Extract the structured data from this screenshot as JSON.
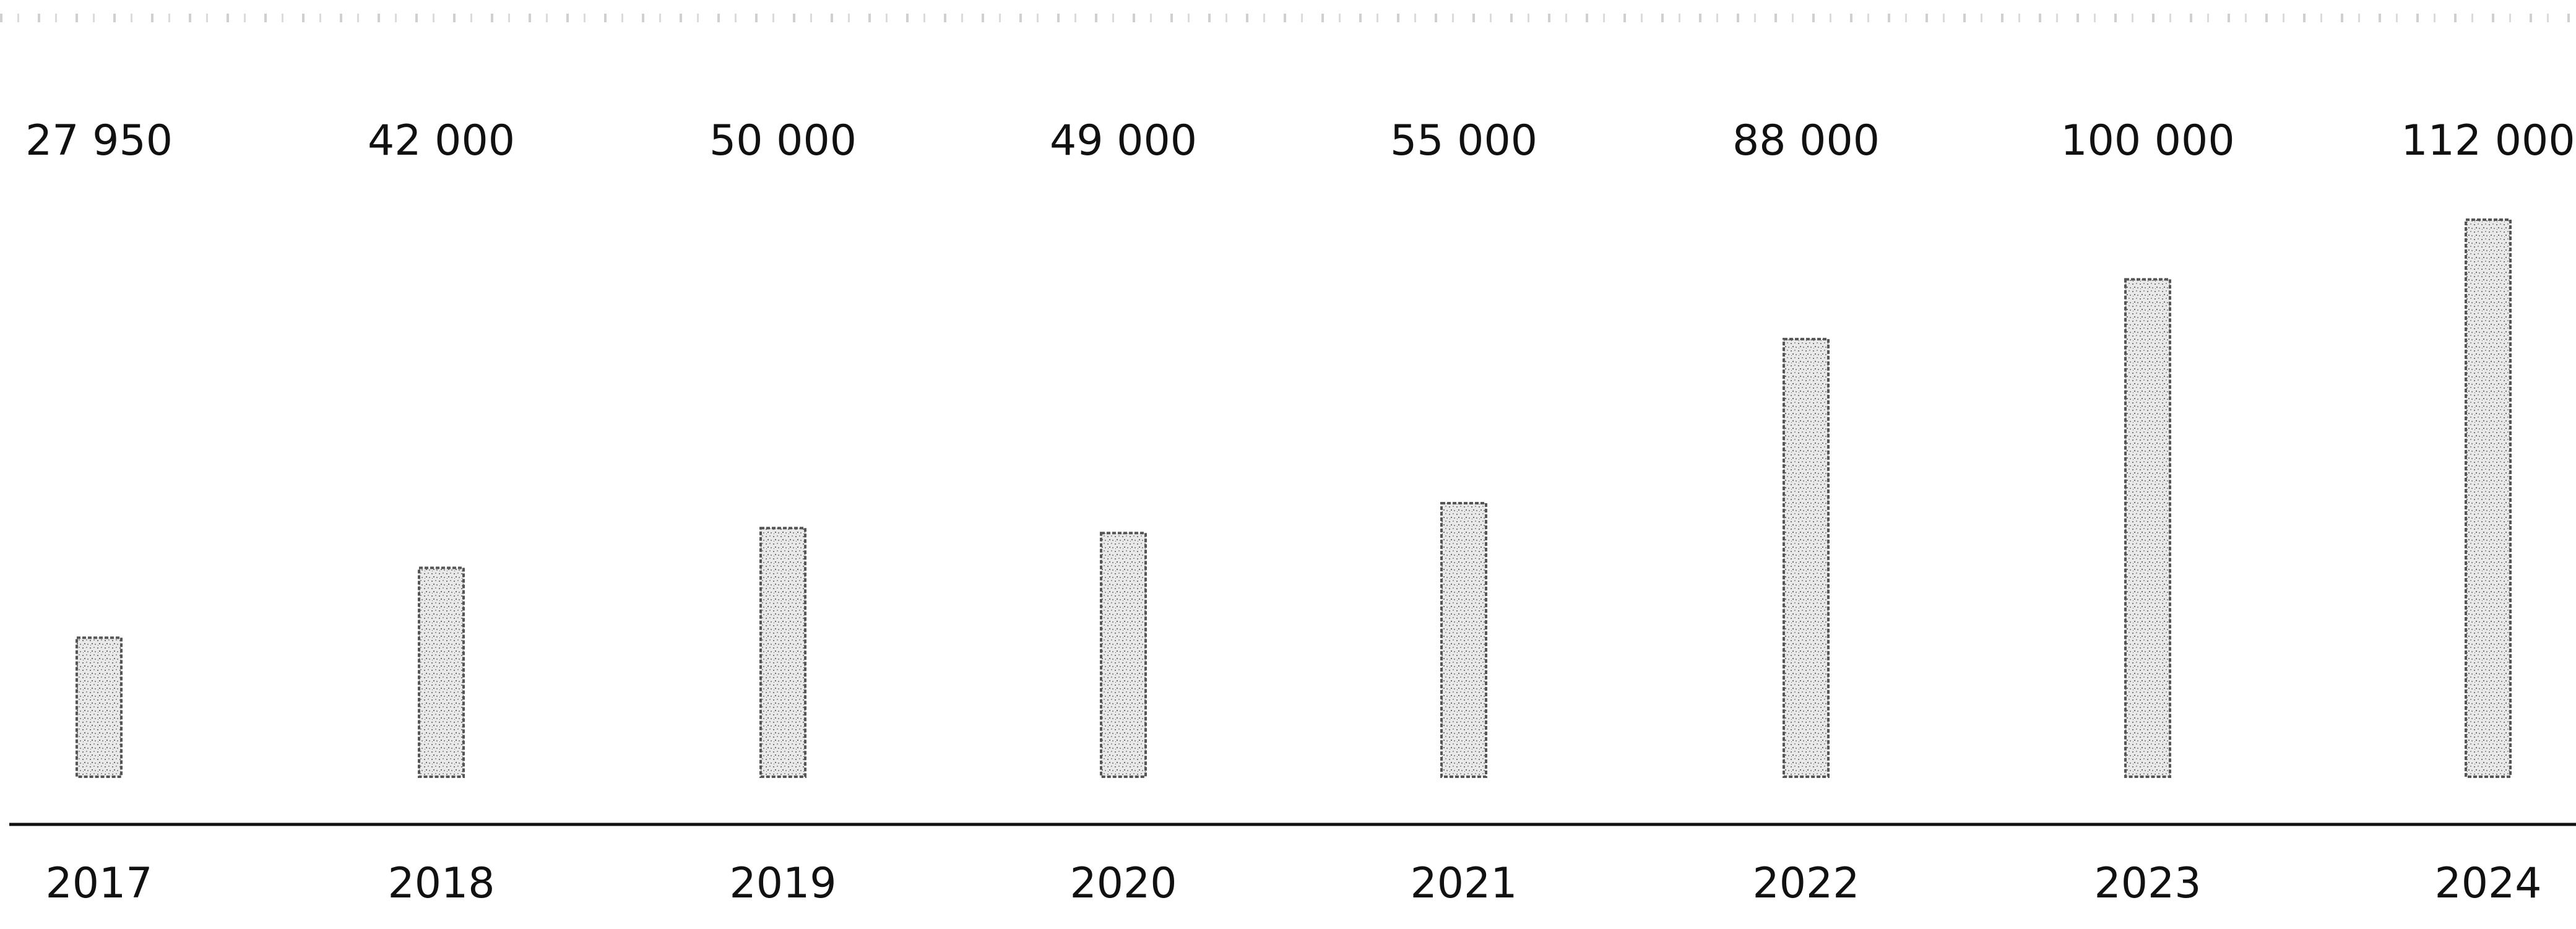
{
  "chart_data": {
    "type": "bar",
    "categories": [
      "2017",
      "2018",
      "2019",
      "2020",
      "2021",
      "2022",
      "2023",
      "2024"
    ],
    "values": [
      27950,
      42000,
      50000,
      49000,
      55000,
      88000,
      100000,
      112000
    ],
    "value_labels": [
      "27 950",
      "42 000",
      "50 000",
      "49 000",
      "55 000",
      "88 000",
      "100 000",
      "112 000"
    ],
    "title": "",
    "xlabel": "",
    "ylabel": "",
    "grid": false,
    "legend": "none",
    "bar_pattern": "stippled"
  },
  "colors": {
    "bar_fill": "#d9d9d9",
    "bar_stroke": "#555555",
    "axis": "#111111",
    "text": "#111111",
    "background": "#ffffff"
  }
}
